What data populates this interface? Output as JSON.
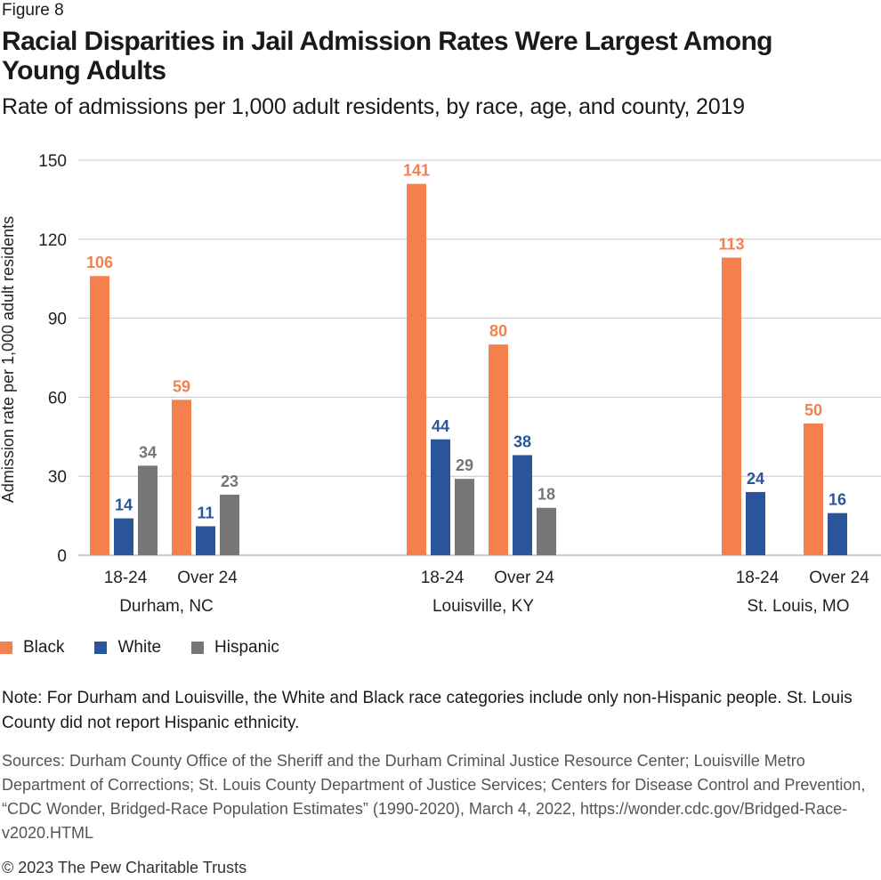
{
  "figure_label": "Figure 8",
  "title": "Racial Disparities in Jail Admission Rates Were Largest Among Young Adults",
  "subtitle": "Rate of admissions per 1,000 adult residents, by race, age, and county, 2019",
  "legend": [
    {
      "label": "Black",
      "color": "#F4804E"
    },
    {
      "label": "White",
      "color": "#2A559B"
    },
    {
      "label": "Hispanic",
      "color": "#767676"
    }
  ],
  "note": "Note: For Durham and Louisville, the White and Black race categories include only non-Hispanic people. St. Louis County did not report Hispanic ethnicity.",
  "sources": "Sources: Durham County Office of the Sheriff and the Durham Criminal Justice Resource Center; Louisville Metro Department of Corrections; St. Louis County Department of Justice Services; Centers for Disease Control and Prevention, “CDC Wonder, Bridged-Race Population Estimates” (1990-2020), March 4, 2022, https://wonder.cdc.gov/Bridged-Race-v2020.HTML",
  "copyright": "© 2023 The Pew Charitable Trusts",
  "chart_data": {
    "type": "bar",
    "title": "Racial Disparities in Jail Admission Rates Were Largest Among Young Adults",
    "ylabel": "Admission rate per 1,000 adult residents",
    "xlabel": "",
    "ylim": [
      0,
      150
    ],
    "yticks": [
      0,
      30,
      60,
      90,
      120,
      150
    ],
    "grid": true,
    "groups": [
      {
        "county": "Durham, NC",
        "age_groups": [
          {
            "label": "18-24",
            "values": [
              {
                "series": "Black",
                "value": 106
              },
              {
                "series": "White",
                "value": 14
              },
              {
                "series": "Hispanic",
                "value": 34
              }
            ]
          },
          {
            "label": "Over 24",
            "values": [
              {
                "series": "Black",
                "value": 59
              },
              {
                "series": "White",
                "value": 11
              },
              {
                "series": "Hispanic",
                "value": 23
              }
            ]
          }
        ]
      },
      {
        "county": "Louisville, KY",
        "age_groups": [
          {
            "label": "18-24",
            "values": [
              {
                "series": "Black",
                "value": 141
              },
              {
                "series": "White",
                "value": 44
              },
              {
                "series": "Hispanic",
                "value": 29
              }
            ]
          },
          {
            "label": "Over 24",
            "values": [
              {
                "series": "Black",
                "value": 80
              },
              {
                "series": "White",
                "value": 38
              },
              {
                "series": "Hispanic",
                "value": 18
              }
            ]
          }
        ]
      },
      {
        "county": "St. Louis, MO",
        "age_groups": [
          {
            "label": "18-24",
            "values": [
              {
                "series": "Black",
                "value": 113
              },
              {
                "series": "White",
                "value": 24
              }
            ]
          },
          {
            "label": "Over 24",
            "values": [
              {
                "series": "Black",
                "value": 50
              },
              {
                "series": "White",
                "value": 16
              }
            ]
          }
        ]
      }
    ]
  }
}
